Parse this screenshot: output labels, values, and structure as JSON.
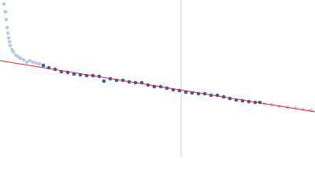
{
  "chart_data": {
    "type": "scatter",
    "xlim": [
      0,
      400
    ],
    "ylim": [
      0,
      200
    ],
    "vline": 230,
    "vline_color": "#c8d0e0",
    "fit": {
      "x": [
        0,
        400
      ],
      "values": [
        123,
        58
      ],
      "color": "#d9262b"
    },
    "series": [
      {
        "color": "#b8c9e3",
        "x": [
          5,
          7,
          8,
          9,
          10,
          11,
          12,
          13,
          15,
          17,
          20,
          23,
          26,
          30,
          34,
          38,
          42,
          46,
          50
        ],
        "values": [
          195,
          185,
          175,
          165,
          158,
          152,
          147,
          142,
          137,
          134,
          130,
          128,
          126,
          124,
          121,
          123,
          121,
          120,
          119
        ]
      },
      {
        "color": "#2f5fb3",
        "x": [
          55,
          62,
          70,
          78,
          86,
          94,
          102,
          110,
          118,
          126,
          132,
          140,
          148,
          156,
          164,
          172,
          180,
          188,
          196,
          204,
          212,
          220,
          228,
          236,
          244,
          252,
          260,
          268,
          276,
          284,
          292,
          300,
          308,
          316,
          324,
          330
        ],
        "values": [
          117,
          114,
          112,
          109,
          108,
          106,
          105,
          104,
          104,
          103,
          97,
          100,
          98,
          98,
          96,
          95,
          95,
          92,
          90,
          90,
          88,
          86,
          85,
          83,
          82,
          81,
          81,
          79,
          79,
          77,
          75,
          73,
          72,
          71,
          70,
          70
        ]
      },
      {
        "color": "#f0c4cf",
        "x": [
          336,
          345,
          355,
          365,
          375,
          385,
          395
        ],
        "values": [
          68,
          67,
          65,
          64,
          63,
          61,
          60
        ]
      }
    ]
  }
}
